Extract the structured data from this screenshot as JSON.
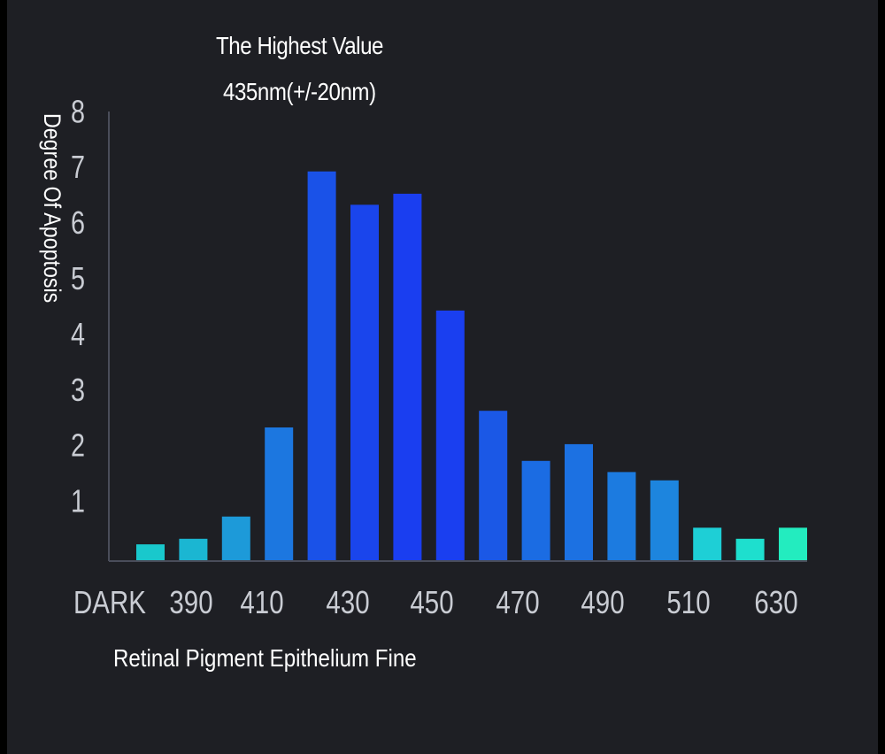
{
  "chart_data": {
    "type": "bar",
    "title": "The Highest Value",
    "subtitle": "435nm(+/-20nm)",
    "xlabel": "Retinal Pigment Epithelium Fine",
    "ylabel": "Degree Of Apoptosis",
    "ylim": [
      0,
      8
    ],
    "yticks": [
      "1",
      "2",
      "3",
      "4",
      "5",
      "6",
      "7",
      "8"
    ],
    "xtick_labels": [
      "DARK",
      "390",
      "410",
      "430",
      "450",
      "470",
      "490",
      "510",
      "630"
    ],
    "values": [
      0.3,
      0.4,
      0.8,
      2.4,
      7.0,
      6.4,
      6.6,
      4.5,
      2.7,
      1.8,
      2.1,
      1.6,
      1.45,
      0.6,
      0.4,
      0.6
    ],
    "bar_colors": [
      "#19c8cc",
      "#1bb6d2",
      "#1d9ad9",
      "#1c77e0",
      "#1a52e8",
      "#1a45ec",
      "#1a3ef0",
      "#1a3ff0",
      "#1b58e6",
      "#1b6ce3",
      "#1c71e2",
      "#1c7be0",
      "#1d85de",
      "#1ecfd6",
      "#1edfce",
      "#23ecbf"
    ],
    "grid": false
  }
}
